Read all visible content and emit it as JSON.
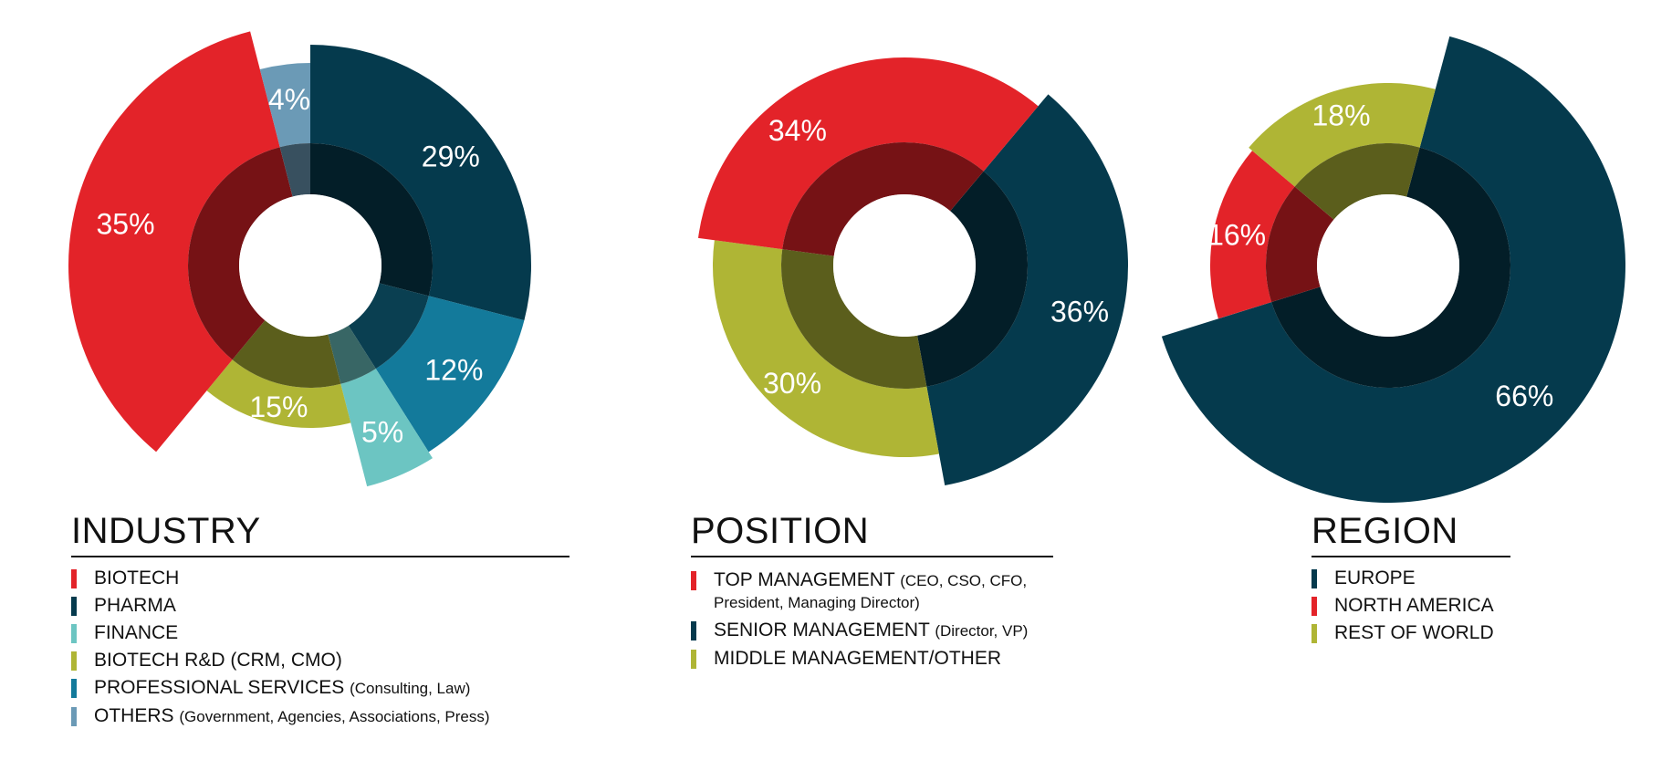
{
  "colors": {
    "red": "#E32329",
    "navy": "#053A4D",
    "teal_light": "#6CC5C2",
    "olive": "#AFB535",
    "teal": "#137A9B",
    "steel": "#6B9AB6"
  },
  "chart_data": [
    {
      "type": "pie",
      "title": "INDUSTRY",
      "slices": [
        {
          "key": "pharma",
          "label": "PHARMA",
          "value": 29,
          "pct_label": "29%",
          "color": "#053A4D"
        },
        {
          "key": "prof",
          "label": "PROFESSIONAL SERVICES",
          "detail": "(Consulting, Law)",
          "value": 12,
          "pct_label": "12%",
          "color": "#137A9B"
        },
        {
          "key": "finance",
          "label": "FINANCE",
          "value": 5,
          "pct_label": "5%",
          "color": "#6CC5C2"
        },
        {
          "key": "rnd",
          "label": "BIOTECH R&D (CRM, CMO)",
          "value": 15,
          "pct_label": "15%",
          "color": "#AFB535"
        },
        {
          "key": "biotech",
          "label": "BIOTECH",
          "value": 35,
          "pct_label": "35%",
          "color": "#E32329"
        },
        {
          "key": "others",
          "label": "OTHERS",
          "detail": "(Government, Agencies, Associations, Press)",
          "value": 4,
          "pct_label": "4%",
          "color": "#6B9AB6"
        }
      ],
      "legend_order": [
        "biotech",
        "pharma",
        "finance",
        "rnd",
        "prof",
        "others"
      ]
    },
    {
      "type": "pie",
      "title": "POSITION",
      "slices": [
        {
          "key": "senior",
          "label": "SENIOR MANAGEMENT",
          "detail": "(Director, VP)",
          "value": 36,
          "pct_label": "36%",
          "color": "#053A4D"
        },
        {
          "key": "middle",
          "label": "MIDDLE MANAGEMENT/OTHER",
          "value": 30,
          "pct_label": "30%",
          "color": "#AFB535"
        },
        {
          "key": "top",
          "label": "TOP MANAGEMENT",
          "detail": "(CEO, CSO, CFO,",
          "detail_line2": "President, Managing Director)",
          "value": 34,
          "pct_label": "34%",
          "color": "#E32329"
        }
      ],
      "legend_order": [
        "top",
        "senior",
        "middle"
      ]
    },
    {
      "type": "pie",
      "title": "REGION",
      "slices": [
        {
          "key": "europe",
          "label": "EUROPE",
          "value": 66,
          "pct_label": "66%",
          "color": "#053A4D"
        },
        {
          "key": "na",
          "label": "NORTH AMERICA",
          "value": 16,
          "pct_label": "16%",
          "color": "#E32329"
        },
        {
          "key": "row",
          "label": "REST OF WORLD",
          "value": 18,
          "pct_label": "18%",
          "color": "#AFB535"
        }
      ],
      "legend_order": [
        "europe",
        "na",
        "row"
      ]
    }
  ]
}
